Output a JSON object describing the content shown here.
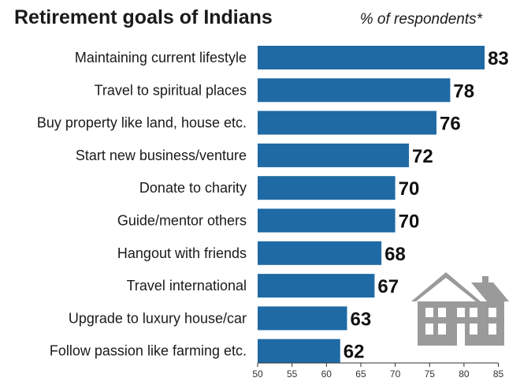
{
  "chart_data": {
    "type": "bar",
    "orientation": "horizontal",
    "title": "Retirement goals of Indians",
    "subtitle": "% of respondents*",
    "categories": [
      "Maintaining current lifestyle",
      "Travel to spiritual places",
      "Buy property like land, house etc.",
      "Start new business/venture",
      "Donate to charity",
      "Guide/mentor others",
      "Hangout with friends",
      "Travel international",
      "Upgrade to luxury house/car",
      "Follow passion like farming etc."
    ],
    "values": [
      83,
      78,
      76,
      72,
      70,
      70,
      68,
      67,
      63,
      62
    ],
    "xlim": [
      50,
      87
    ],
    "xticks": [
      50,
      55,
      60,
      65,
      70,
      75,
      80,
      85
    ],
    "grid": false,
    "legend": "none"
  },
  "colors": {
    "bar": "#1f6aa5",
    "axis": "#333333",
    "house_icon": "#9a9a9a"
  },
  "icons": [
    "house-icon"
  ]
}
